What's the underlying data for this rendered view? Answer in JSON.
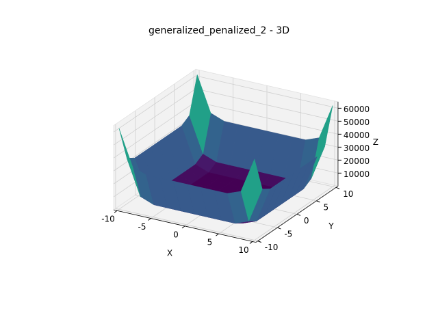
{
  "chart_data": {
    "type": "surface3d",
    "title": "generalized_penalized_2 - 3D",
    "x_label": "X",
    "y_label": "Y",
    "z_label": "Z",
    "colormap": "viridis",
    "x": [
      -10,
      -8,
      -6,
      -4,
      -2,
      0,
      2,
      4,
      6,
      8,
      10
    ],
    "y": [
      -10,
      -8,
      -6,
      -4,
      -2,
      0,
      2,
      4,
      6,
      8,
      10
    ],
    "z": [
      [
        62500,
        35300,
        31300,
        31250,
        31250,
        31250,
        31250,
        31250,
        31300,
        35300,
        62500
      ],
      [
        35300,
        8100,
        4100,
        4050,
        4050,
        4050,
        4050,
        4050,
        4100,
        8100,
        35300
      ],
      [
        31300,
        4100,
        100,
        50,
        50,
        50,
        50,
        50,
        100,
        4100,
        31300
      ],
      [
        31250,
        4050,
        50,
        0,
        0,
        0,
        0,
        0,
        50,
        4050,
        31250
      ],
      [
        31250,
        4050,
        50,
        0,
        0,
        0,
        0,
        0,
        50,
        4050,
        31250
      ],
      [
        31250,
        4050,
        50,
        0,
        0,
        0,
        0,
        0,
        50,
        4050,
        31250
      ],
      [
        31250,
        4050,
        50,
        0,
        0,
        0,
        0,
        0,
        50,
        4050,
        31250
      ],
      [
        31250,
        4050,
        50,
        0,
        0,
        0,
        0,
        0,
        50,
        4050,
        31250
      ],
      [
        31300,
        4100,
        100,
        50,
        50,
        50,
        50,
        50,
        100,
        4100,
        31300
      ],
      [
        35300,
        8100,
        4100,
        4050,
        4050,
        4050,
        4050,
        4050,
        4100,
        8100,
        35300
      ],
      [
        62500,
        35300,
        31300,
        31250,
        31250,
        31250,
        31250,
        31250,
        31300,
        35300,
        62500
      ]
    ],
    "xlim": [
      -10.5,
      10.5
    ],
    "ylim": [
      -10.5,
      10.5
    ],
    "zlim": [
      0,
      65000
    ],
    "xticks": [
      -10,
      -5,
      0,
      5,
      10
    ],
    "yticks": [
      -10,
      -5,
      0,
      5,
      10
    ],
    "zticks": [
      10000,
      20000,
      30000,
      40000,
      50000,
      60000
    ],
    "grid": true
  }
}
